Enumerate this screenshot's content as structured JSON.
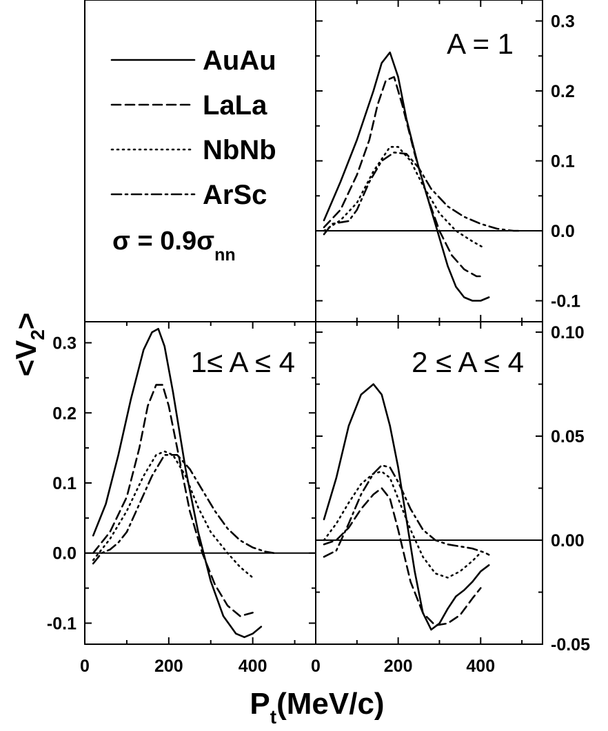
{
  "figure": {
    "ylabel_main": "<V",
    "ylabel_sub": "2",
    "ylabel_close": ">",
    "xlabel_main": "P",
    "xlabel_sub": "t",
    "xlabel_rest": "(MeV/c)"
  },
  "legend": {
    "entries": [
      {
        "label": "AuAu",
        "style": "solid"
      },
      {
        "label": "LaLa",
        "style": "dash"
      },
      {
        "label": "NbNb",
        "style": "dot"
      },
      {
        "label": "ArSc",
        "style": "dashdot"
      }
    ],
    "sigma_main": "σ = 0.9σ",
    "sigma_sub": "nn"
  },
  "chart_data": [
    {
      "type": "line",
      "panel": "top-right",
      "title": "A = 1",
      "xlim": [
        0,
        550
      ],
      "ylim": [
        -0.13,
        0.33
      ],
      "yticks": [
        -0.1,
        0.0,
        0.1,
        0.2,
        0.3
      ],
      "ytick_labels": [
        "-0.1",
        "0.0",
        "0.1",
        "0.2",
        "0.3"
      ],
      "yaxis_side": "right",
      "series": [
        {
          "name": "AuAu",
          "style": "solid",
          "x": [
            20,
            60,
            100,
            140,
            160,
            180,
            200,
            220,
            250,
            280,
            300,
            320,
            340,
            360,
            380,
            400,
            420
          ],
          "y": [
            0.015,
            0.07,
            0.13,
            0.2,
            0.24,
            0.255,
            0.22,
            0.16,
            0.09,
            0.03,
            -0.01,
            -0.05,
            -0.08,
            -0.095,
            -0.1,
            -0.1,
            -0.095
          ]
        },
        {
          "name": "LaLa",
          "style": "dash",
          "x": [
            20,
            60,
            100,
            130,
            150,
            170,
            190,
            210,
            240,
            270,
            300,
            330,
            360,
            390,
            410
          ],
          "y": [
            0.005,
            0.03,
            0.08,
            0.13,
            0.18,
            0.215,
            0.22,
            0.18,
            0.11,
            0.05,
            0.0,
            -0.035,
            -0.055,
            -0.065,
            -0.065
          ]
        },
        {
          "name": "NbNb",
          "style": "dot",
          "x": [
            20,
            60,
            100,
            140,
            180,
            200,
            230,
            260,
            300,
            340,
            380,
            410
          ],
          "y": [
            0.0,
            0.015,
            0.04,
            0.085,
            0.12,
            0.12,
            0.1,
            0.065,
            0.025,
            0.0,
            -0.015,
            -0.025
          ]
        },
        {
          "name": "ArSc",
          "style": "dashdot",
          "x": [
            20,
            40,
            60,
            80,
            100,
            130,
            160,
            190,
            220,
            250,
            280,
            320,
            360,
            400,
            440,
            480,
            500
          ],
          "y": [
            -0.005,
            0.01,
            0.012,
            0.014,
            0.03,
            0.07,
            0.1,
            0.112,
            0.11,
            0.09,
            0.06,
            0.035,
            0.02,
            0.01,
            0.003,
            0.0,
            0.0
          ]
        }
      ]
    },
    {
      "type": "line",
      "panel": "bottom-left",
      "title": "1≤ A ≤ 4",
      "xlim": [
        0,
        550
      ],
      "ylim": [
        -0.13,
        0.33
      ],
      "yticks": [
        -0.1,
        0.0,
        0.1,
        0.2,
        0.3
      ],
      "ytick_labels": [
        "-0.1",
        "0.0",
        "0.1",
        "0.2",
        "0.3"
      ],
      "yaxis_side": "left",
      "xticks": [
        0,
        200,
        400
      ],
      "xtick_labels": [
        "0",
        "200",
        "400"
      ],
      "series": [
        {
          "name": "AuAu",
          "style": "solid",
          "x": [
            20,
            50,
            80,
            110,
            140,
            160,
            175,
            190,
            210,
            240,
            270,
            300,
            330,
            360,
            380,
            400,
            420
          ],
          "y": [
            0.025,
            0.07,
            0.14,
            0.22,
            0.29,
            0.315,
            0.32,
            0.295,
            0.23,
            0.12,
            0.03,
            -0.04,
            -0.09,
            -0.115,
            -0.12,
            -0.115,
            -0.105
          ]
        },
        {
          "name": "LaLa",
          "style": "dash",
          "x": [
            20,
            60,
            100,
            130,
            150,
            170,
            185,
            200,
            220,
            250,
            280,
            310,
            340,
            370,
            400
          ],
          "y": [
            0.0,
            0.03,
            0.08,
            0.15,
            0.21,
            0.24,
            0.24,
            0.21,
            0.15,
            0.06,
            0.0,
            -0.045,
            -0.075,
            -0.09,
            -0.085
          ]
        },
        {
          "name": "NbNb",
          "style": "dot",
          "x": [
            20,
            60,
            100,
            140,
            170,
            190,
            210,
            240,
            270,
            300,
            340,
            370,
            400
          ],
          "y": [
            -0.01,
            0.02,
            0.06,
            0.11,
            0.14,
            0.145,
            0.14,
            0.11,
            0.065,
            0.03,
            0.0,
            -0.02,
            -0.035
          ]
        },
        {
          "name": "ArSc",
          "style": "dashdot",
          "x": [
            20,
            40,
            60,
            80,
            100,
            130,
            160,
            190,
            220,
            250,
            280,
            310,
            340,
            370,
            400,
            430,
            450
          ],
          "y": [
            -0.015,
            0.0,
            0.005,
            0.015,
            0.03,
            0.07,
            0.11,
            0.14,
            0.14,
            0.12,
            0.09,
            0.06,
            0.035,
            0.018,
            0.008,
            0.002,
            0.0
          ]
        }
      ]
    },
    {
      "type": "line",
      "panel": "bottom-right",
      "title": "2 ≤ A ≤ 4",
      "xlim": [
        0,
        550
      ],
      "ylim": [
        -0.05,
        0.105
      ],
      "yticks": [
        -0.05,
        0.0,
        0.05,
        0.1
      ],
      "ytick_labels": [
        "-0.05",
        "0.00",
        "0.05",
        "0.10"
      ],
      "yaxis_side": "right",
      "xticks": [
        0,
        200,
        400
      ],
      "xtick_labels": [
        "0",
        "200",
        "400"
      ],
      "series": [
        {
          "name": "AuAu",
          "style": "solid",
          "x": [
            20,
            50,
            80,
            110,
            140,
            160,
            180,
            200,
            220,
            240,
            260,
            280,
            300,
            320,
            340,
            360,
            380,
            400,
            420
          ],
          "y": [
            0.01,
            0.03,
            0.055,
            0.07,
            0.075,
            0.07,
            0.055,
            0.035,
            0.01,
            -0.015,
            -0.035,
            -0.043,
            -0.04,
            -0.033,
            -0.027,
            -0.024,
            -0.02,
            -0.015,
            -0.012
          ]
        },
        {
          "name": "LaLa",
          "style": "dash",
          "x": [
            20,
            50,
            80,
            110,
            140,
            160,
            180,
            200,
            230,
            260,
            290,
            320,
            350,
            380,
            400
          ],
          "y": [
            -0.002,
            0.0,
            0.006,
            0.015,
            0.022,
            0.025,
            0.02,
            0.005,
            -0.02,
            -0.035,
            -0.041,
            -0.04,
            -0.036,
            -0.028,
            -0.023
          ]
        },
        {
          "name": "NbNb",
          "style": "dot",
          "x": [
            20,
            50,
            80,
            110,
            140,
            160,
            180,
            200,
            230,
            260,
            290,
            320,
            350,
            380,
            400
          ],
          "y": [
            0.0,
            0.008,
            0.018,
            0.027,
            0.032,
            0.033,
            0.03,
            0.02,
            0.005,
            -0.008,
            -0.016,
            -0.018,
            -0.015,
            -0.01,
            -0.006
          ]
        },
        {
          "name": "ArSc",
          "style": "dashdot",
          "x": [
            20,
            50,
            80,
            110,
            140,
            160,
            180,
            200,
            230,
            260,
            290,
            320,
            350,
            380,
            410,
            420
          ],
          "y": [
            -0.008,
            -0.005,
            0.008,
            0.022,
            0.032,
            0.036,
            0.035,
            0.028,
            0.015,
            0.005,
            0.0,
            -0.002,
            -0.003,
            -0.004,
            -0.006,
            -0.007
          ]
        }
      ]
    }
  ]
}
